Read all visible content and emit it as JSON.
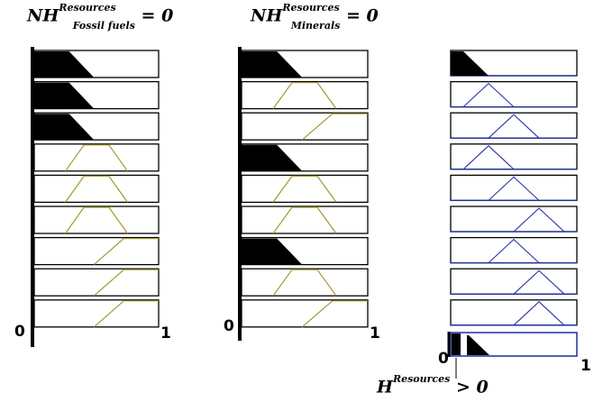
{
  "titles": {
    "left": {
      "base": "NH",
      "sup": "Resources",
      "sub": "Fossil fuels",
      "rel": "= 0"
    },
    "middle": {
      "base": "NH",
      "sup": "Resources",
      "sub": "Minerals",
      "rel": "= 0"
    },
    "bottom": {
      "base": "H",
      "sup": "Resources",
      "rel": "> 0"
    }
  },
  "axis_labels": {
    "left_zero": "0",
    "left_one": "1",
    "middle_zero": "0",
    "middle_one": "1",
    "right_zero": "0",
    "right_one": "1"
  },
  "colors": {
    "filled": "#000000",
    "left_outline": "#a39a2a",
    "right_outline": "#2a34a8",
    "frame": "#000000",
    "right_frame": "#1f2e9a"
  },
  "membership_columns": {
    "left": [
      "low-filled",
      "low-filled",
      "low-filled",
      "medium",
      "medium",
      "medium",
      "high",
      "high",
      "high"
    ],
    "middle": [
      "low-filled",
      "medium",
      "high",
      "low-filled",
      "medium",
      "medium",
      "low-filled",
      "medium",
      "high"
    ],
    "right": [
      "low-filled",
      "medium",
      "medium-high",
      "medium",
      "medium-high",
      "high",
      "medium-high",
      "high",
      "high"
    ]
  },
  "bottom_output": "low-filled"
}
